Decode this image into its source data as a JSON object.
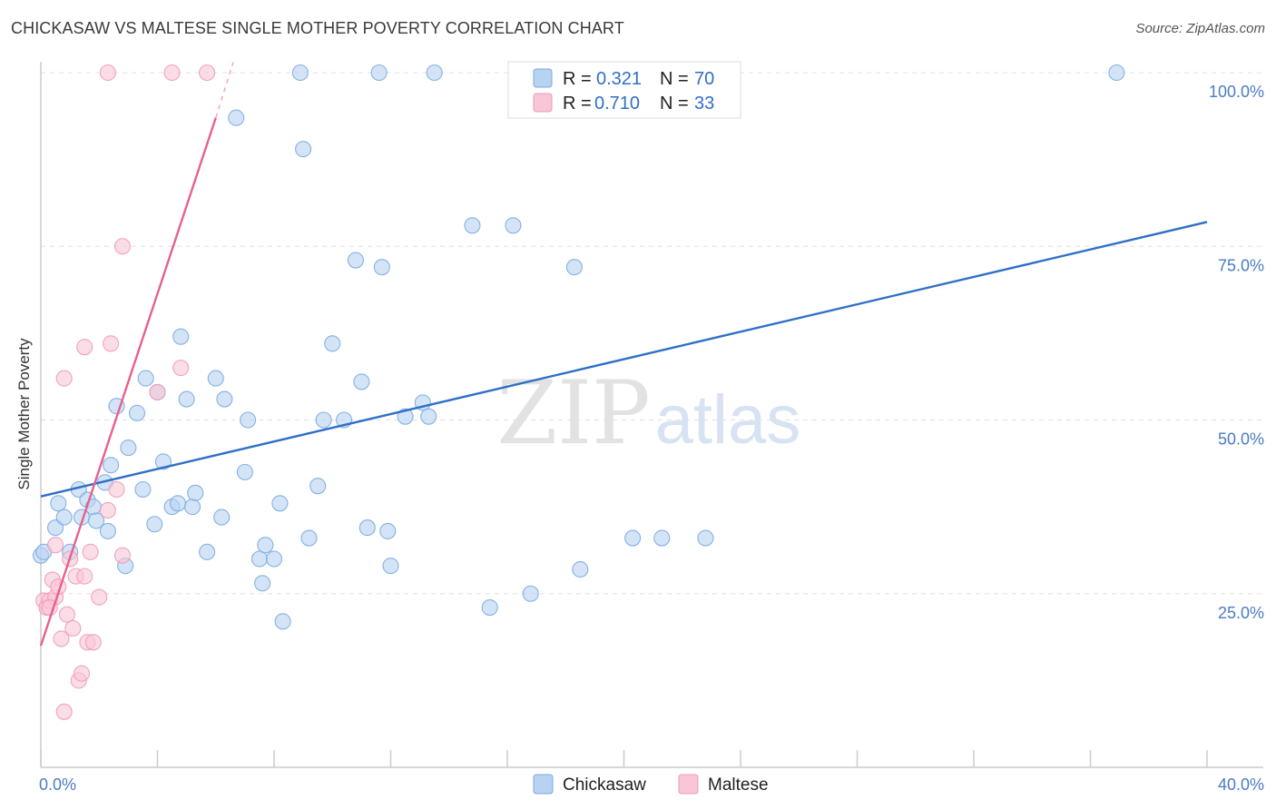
{
  "header": {
    "title": "CHICKASAW VS MALTESE SINGLE MOTHER POVERTY CORRELATION CHART",
    "source": "Source: ZipAtlas.com"
  },
  "watermark": {
    "zip": "ZIP",
    "atlas": "atlas"
  },
  "legend": {
    "r_label": "R =",
    "n_label": "N =",
    "rows": [
      {
        "name": "Chickasaw",
        "r": "0.321",
        "n": "70",
        "color": "#7aaae0",
        "fill": "#b8d2f2"
      },
      {
        "name": "Maltese",
        "r": "0.710",
        "n": "33",
        "color": "#f09ab8",
        "fill": "#f9c6d6"
      }
    ]
  },
  "chart_data": {
    "type": "scatter",
    "title": "CHICKASAW VS MALTESE SINGLE MOTHER POVERTY CORRELATION CHART",
    "xlabel": "",
    "ylabel": "Single Mother Poverty",
    "xlim": [
      0,
      40
    ],
    "ylim": [
      0,
      100
    ],
    "x_tick_labels": [
      "0.0%",
      "40.0%"
    ],
    "y_tick_labels": [
      "25.0%",
      "50.0%",
      "75.0%",
      "100.0%"
    ],
    "y_tick_values": [
      25,
      50,
      75,
      100
    ],
    "grid": true,
    "series": [
      {
        "name": "Chickasaw",
        "color": "#2f6fc8",
        "points": [
          [
            0.0,
            30.5
          ],
          [
            0.5,
            34.5
          ],
          [
            0.6,
            38.0
          ],
          [
            0.8,
            36.0
          ],
          [
            1.0,
            31.0
          ],
          [
            1.3,
            40.0
          ],
          [
            1.4,
            36.0
          ],
          [
            1.6,
            38.5
          ],
          [
            1.8,
            37.5
          ],
          [
            1.9,
            35.5
          ],
          [
            2.2,
            41.0
          ],
          [
            2.3,
            34.0
          ],
          [
            2.4,
            43.5
          ],
          [
            2.6,
            52.0
          ],
          [
            2.9,
            29.0
          ],
          [
            3.0,
            46.0
          ],
          [
            3.3,
            51.0
          ],
          [
            3.5,
            40.0
          ],
          [
            3.6,
            56.0
          ],
          [
            3.9,
            35.0
          ],
          [
            4.0,
            54.0
          ],
          [
            4.2,
            44.0
          ],
          [
            4.5,
            37.5
          ],
          [
            4.7,
            38.0
          ],
          [
            4.8,
            62.0
          ],
          [
            5.0,
            53.0
          ],
          [
            5.2,
            37.5
          ],
          [
            5.3,
            39.5
          ],
          [
            5.7,
            31.0
          ],
          [
            6.0,
            56.0
          ],
          [
            6.2,
            36.0
          ],
          [
            6.3,
            53.0
          ],
          [
            6.7,
            93.5
          ],
          [
            7.0,
            42.5
          ],
          [
            7.1,
            50.0
          ],
          [
            7.5,
            30.0
          ],
          [
            7.6,
            26.5
          ],
          [
            7.7,
            32.0
          ],
          [
            8.0,
            30.0
          ],
          [
            8.2,
            38.0
          ],
          [
            8.3,
            21.0
          ],
          [
            8.9,
            100.0
          ],
          [
            9.0,
            89.0
          ],
          [
            9.2,
            33.0
          ],
          [
            9.5,
            40.5
          ],
          [
            9.7,
            50.0
          ],
          [
            10.0,
            61.0
          ],
          [
            10.4,
            50.0
          ],
          [
            10.8,
            73.0
          ],
          [
            11.0,
            55.5
          ],
          [
            11.2,
            34.5
          ],
          [
            11.6,
            100.0
          ],
          [
            11.7,
            72.0
          ],
          [
            11.9,
            34.0
          ],
          [
            12.0,
            29.0
          ],
          [
            12.5,
            50.5
          ],
          [
            13.1,
            52.5
          ],
          [
            13.3,
            50.5
          ],
          [
            13.5,
            100.0
          ],
          [
            14.8,
            78.0
          ],
          [
            15.4,
            23.0
          ],
          [
            16.2,
            78.0
          ],
          [
            16.8,
            25.0
          ],
          [
            18.3,
            72.0
          ],
          [
            18.5,
            28.5
          ],
          [
            20.3,
            33.0
          ],
          [
            21.3,
            33.0
          ],
          [
            22.8,
            33.0
          ],
          [
            36.9,
            100.0
          ],
          [
            0.1,
            31.0
          ]
        ]
      },
      {
        "name": "Maltese",
        "color": "#e8608d",
        "points": [
          [
            0.1,
            24.0
          ],
          [
            0.2,
            23.0
          ],
          [
            0.3,
            24.0
          ],
          [
            0.4,
            27.0
          ],
          [
            0.5,
            24.5
          ],
          [
            0.6,
            26.0
          ],
          [
            0.7,
            18.5
          ],
          [
            0.8,
            8.0
          ],
          [
            0.8,
            56.0
          ],
          [
            0.9,
            22.0
          ],
          [
            1.0,
            30.0
          ],
          [
            1.1,
            20.0
          ],
          [
            1.2,
            27.5
          ],
          [
            1.3,
            12.5
          ],
          [
            1.4,
            13.5
          ],
          [
            1.5,
            27.5
          ],
          [
            1.5,
            60.5
          ],
          [
            1.6,
            18.0
          ],
          [
            1.7,
            31.0
          ],
          [
            1.8,
            18.0
          ],
          [
            2.0,
            24.5
          ],
          [
            2.3,
            100.0
          ],
          [
            2.3,
            37.0
          ],
          [
            2.4,
            61.0
          ],
          [
            2.6,
            40.0
          ],
          [
            2.8,
            30.5
          ],
          [
            2.8,
            75.0
          ],
          [
            4.0,
            54.0
          ],
          [
            4.5,
            100.0
          ],
          [
            4.8,
            57.5
          ],
          [
            5.7,
            100.0
          ],
          [
            0.5,
            32.0
          ],
          [
            0.3,
            23.0
          ]
        ]
      }
    ],
    "trendlines": [
      {
        "series": "Chickasaw",
        "x": [
          0,
          40
        ],
        "y": [
          39.0,
          78.5
        ]
      },
      {
        "series": "Maltese",
        "x": [
          0,
          6.0
        ],
        "y": [
          17.5,
          93.5
        ],
        "dashed_extension": {
          "x": [
            6.0,
            6.6
          ],
          "y": [
            93.5,
            101.5
          ]
        }
      }
    ]
  }
}
